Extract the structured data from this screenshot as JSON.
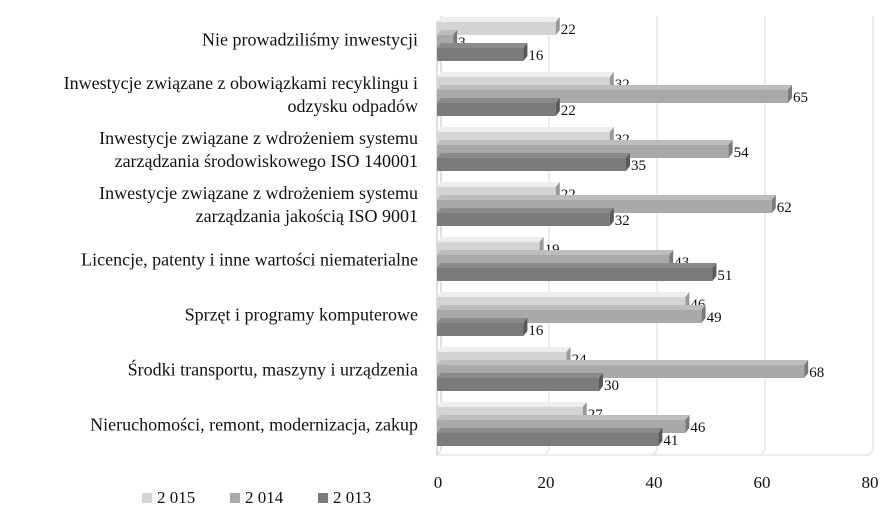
{
  "chart_data": {
    "type": "bar",
    "orientation": "horizontal",
    "style": "3d",
    "categories": [
      [
        "Nie prowadziliśmy inwestycji"
      ],
      [
        "Inwestycje związane z obowiązkami recyklingu i",
        "odzysku odpadów"
      ],
      [
        "Inwestycje związane z wdrożeniem systemu",
        "zarządzania środowiskowego  ISO 140001"
      ],
      [
        "Inwestycje związane z wdrożeniem systemu",
        "zarządzania jakością  ISO 9001"
      ],
      [
        "Licencje, patenty i inne wartości niematerialne"
      ],
      [
        "Sprzęt i programy komputerowe"
      ],
      [
        "Środki transportu, maszyny i urządzenia"
      ],
      [
        "Nieruchomości, remont, modernizacja, zakup"
      ]
    ],
    "series": [
      {
        "name": "2 015",
        "color": "#d4d4d4",
        "values": [
          22,
          32,
          32,
          22,
          19,
          46,
          24,
          27
        ]
      },
      {
        "name": "2 014",
        "color": "#a9a9a9",
        "values": [
          3,
          65,
          54,
          62,
          43,
          49,
          68,
          46
        ]
      },
      {
        "name": "2 013",
        "color": "#7b7b7b",
        "values": [
          16,
          22,
          35,
          32,
          51,
          16,
          30,
          41
        ]
      }
    ],
    "xlim": [
      0,
      80
    ],
    "xticks": [
      "0",
      "20",
      "40",
      "60",
      "80"
    ],
    "grid": true,
    "legend_position": "bottom-left"
  }
}
